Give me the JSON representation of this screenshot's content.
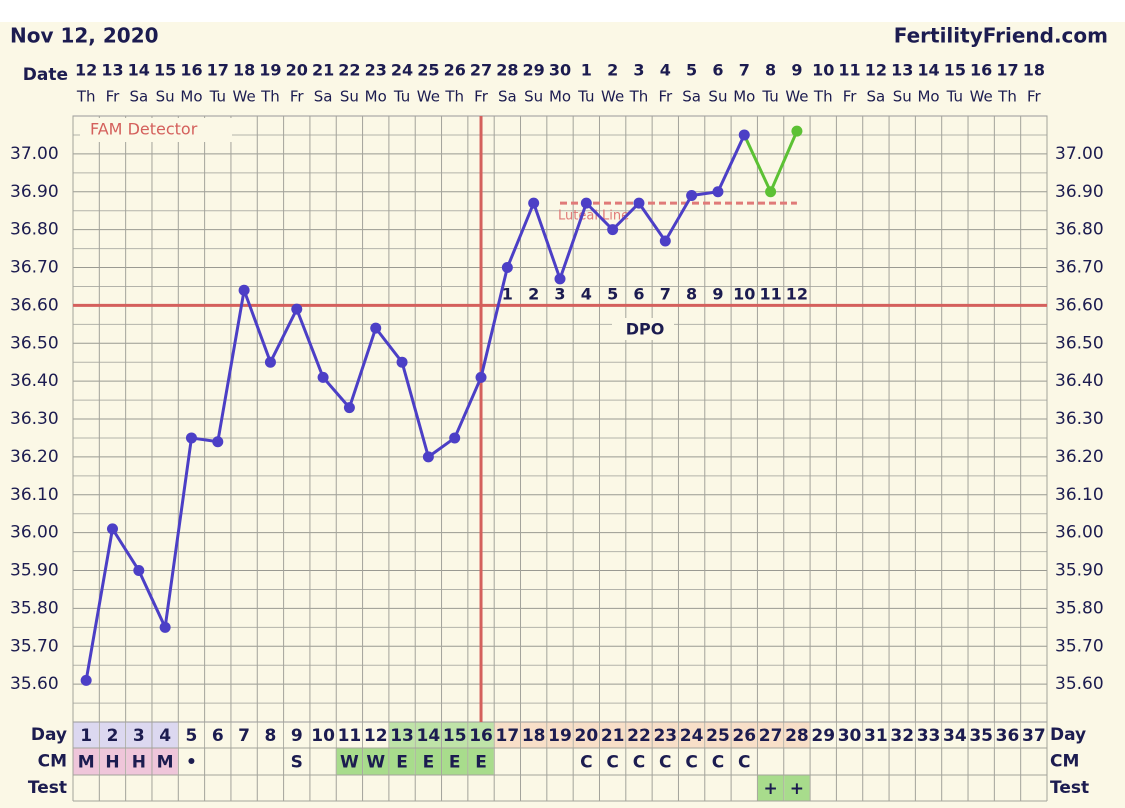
{
  "chart_data": {
    "type": "line",
    "title": "Nov 12, 2020",
    "site": "FertilityFriend.com",
    "date_label": "Date",
    "categories": [
      "12",
      "13",
      "14",
      "15",
      "16",
      "17",
      "18",
      "19",
      "20",
      "21",
      "22",
      "23",
      "24",
      "25",
      "26",
      "27",
      "28",
      "29",
      "30",
      "1",
      "2",
      "3",
      "4",
      "5",
      "6",
      "7",
      "8",
      "9",
      "10",
      "11",
      "12",
      "13",
      "14",
      "15",
      "16",
      "17",
      "18"
    ],
    "weekdays": [
      "Th",
      "Fr",
      "Sa",
      "Su",
      "Mo",
      "Tu",
      "We",
      "Th",
      "Fr",
      "Sa",
      "Su",
      "Mo",
      "Tu",
      "We",
      "Th",
      "Fr",
      "Sa",
      "Su",
      "Mo",
      "Tu",
      "We",
      "Th",
      "Fr",
      "Sa",
      "Su",
      "Mo",
      "Tu",
      "We",
      "Th",
      "Fr",
      "Sa",
      "Su",
      "Mo",
      "Tu",
      "We",
      "Th",
      "Fr"
    ],
    "series": [
      {
        "color": "#4c3fc6",
        "values": [
          35.61,
          36.01,
          35.9,
          35.75,
          36.25,
          36.24,
          36.64,
          36.45,
          36.59,
          36.41,
          36.33,
          36.54,
          36.45,
          36.2,
          36.25,
          36.41,
          36.7,
          36.87,
          36.67,
          36.87,
          36.8,
          36.87,
          36.77,
          36.89,
          36.9,
          37.05,
          null,
          null,
          null,
          null,
          null,
          null,
          null,
          null,
          null,
          null,
          null
        ]
      },
      {
        "color": "#5cc134",
        "values": [
          null,
          null,
          null,
          null,
          null,
          null,
          null,
          null,
          null,
          null,
          null,
          null,
          null,
          null,
          null,
          null,
          null,
          null,
          null,
          null,
          null,
          null,
          null,
          null,
          null,
          37.05,
          36.9,
          37.06,
          null,
          null,
          null,
          null,
          null,
          null,
          null,
          null,
          null
        ]
      }
    ],
    "ylim": [
      35.5,
      37.1
    ],
    "yticks": [
      {
        "value": 35.6,
        "label": "35.60"
      },
      {
        "value": 35.7,
        "label": "35.70"
      },
      {
        "value": 35.8,
        "label": "35.80"
      },
      {
        "value": 35.9,
        "label": "35.90"
      },
      {
        "value": 36.0,
        "label": "36.00"
      },
      {
        "value": 36.1,
        "label": "36.10"
      },
      {
        "value": 36.2,
        "label": "36.20"
      },
      {
        "value": 36.3,
        "label": "36.30"
      },
      {
        "value": 36.4,
        "label": "36.40"
      },
      {
        "value": 36.5,
        "label": "36.50"
      },
      {
        "value": 36.6,
        "label": "36.60"
      },
      {
        "value": 36.7,
        "label": "36.70"
      },
      {
        "value": 36.8,
        "label": "36.80"
      },
      {
        "value": 36.9,
        "label": "36.90"
      },
      {
        "value": 37.0,
        "label": "37.00"
      }
    ],
    "minor_yticks": [
      35.55,
      35.65,
      35.75,
      35.85,
      35.95,
      36.05,
      36.15,
      36.25,
      36.35,
      36.45,
      36.55,
      36.65,
      36.75,
      36.85,
      36.95,
      37.05
    ],
    "grid": true,
    "coverline": {
      "value": 36.6,
      "color": "#d4605c"
    },
    "ovulation_day": 16,
    "detector": "FAM Detector",
    "luteal_line": {
      "label": "Luteal Line",
      "value": 36.87,
      "start_day": 19,
      "end_day": 28,
      "color": "#e07a78"
    },
    "dpo": {
      "label": "DPO",
      "values": [
        null,
        null,
        null,
        null,
        null,
        null,
        null,
        null,
        null,
        null,
        null,
        null,
        null,
        null,
        null,
        null,
        1,
        2,
        3,
        4,
        5,
        6,
        7,
        8,
        9,
        10,
        11,
        12,
        null,
        null,
        null,
        null,
        null,
        null,
        null,
        null,
        null
      ]
    },
    "days": {
      "label": "Day",
      "values": [
        1,
        2,
        3,
        4,
        5,
        6,
        7,
        8,
        9,
        10,
        11,
        12,
        13,
        14,
        15,
        16,
        17,
        18,
        19,
        20,
        21,
        22,
        23,
        24,
        25,
        26,
        27,
        28,
        29,
        30,
        31,
        32,
        33,
        34,
        35,
        36,
        37
      ],
      "colors": [
        "#dcd8f0",
        "#dcd8f0",
        "#dcd8f0",
        "#dcd8f0",
        "#fbf8e6",
        "#fbf8e6",
        "#fbf8e6",
        "#fbf8e6",
        "#fbf8e6",
        "#fbf8e6",
        "#fbf8e6",
        "#fbf8e6",
        "#bfe3a8",
        "#bfe3a8",
        "#bfe3a8",
        "#bfe3a8",
        "#f8dfc8",
        "#f8dfc8",
        "#f8dfc8",
        "#f8dfc8",
        "#f8dfc8",
        "#f8dfc8",
        "#f8dfc8",
        "#f8dfc8",
        "#f8dfc8",
        "#f8dfc8",
        "#f8dfc8",
        "#f8dfc8",
        "#fbf8e6",
        "#fbf8e6",
        "#fbf8e6",
        "#fbf8e6",
        "#fbf8e6",
        "#fbf8e6",
        "#fbf8e6",
        "#fbf8e6",
        "#fbf8e6"
      ]
    },
    "cm": {
      "label": "CM",
      "values": [
        "M",
        "H",
        "H",
        "M",
        "•",
        null,
        null,
        null,
        "S",
        null,
        "W",
        "W",
        "E",
        "E",
        "E",
        "E",
        null,
        null,
        null,
        "C",
        "C",
        "C",
        "C",
        "C",
        "C",
        "C",
        null,
        null,
        null,
        null,
        null,
        null,
        null,
        null,
        null,
        null,
        null
      ]
    },
    "test": {
      "label": "Test",
      "values": [
        null,
        null,
        null,
        null,
        null,
        null,
        null,
        null,
        null,
        null,
        null,
        null,
        null,
        null,
        null,
        null,
        null,
        null,
        null,
        null,
        null,
        null,
        null,
        null,
        null,
        null,
        "+",
        "+",
        null,
        null,
        null,
        null,
        null,
        null,
        null,
        null,
        null
      ]
    }
  }
}
